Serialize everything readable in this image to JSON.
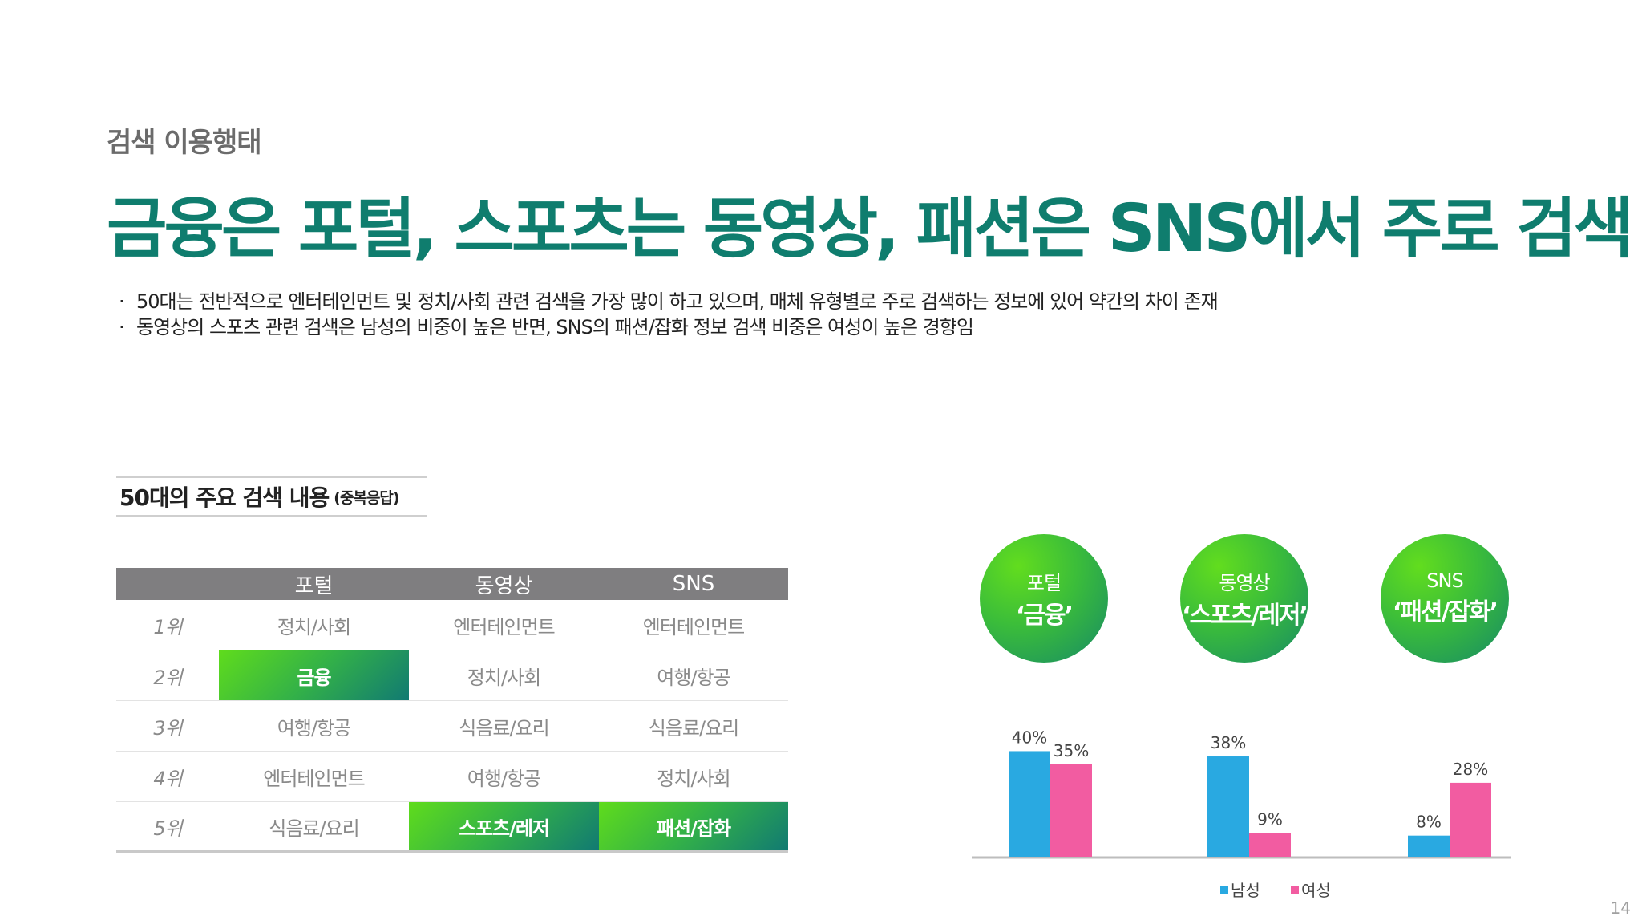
{
  "section_label": "검색 이용행태",
  "headline": "금융은 포털, 스포츠는 동영상, 패션은 SNS에서 주로 검색",
  "bullets": [
    "50대는 전반적으로 엔터테인먼트 및 정치/사회 관련 검색을 가장 많이 하고 있으며, 매체 유형별로 주로 검색하는 정보에 있어 약간의 차이 존재",
    "동영상의 스포츠 관련 검색은 남성의 비중이 높은 반면, SNS의 패션/잡화 정보 검색 비중은 여성이 높은 경향임"
  ],
  "table": {
    "title": "50대의 주요 검색 내용",
    "title_note": "(중복응답)",
    "headers": [
      "",
      "포털",
      "동영상",
      "SNS"
    ],
    "rows": [
      {
        "rank": "1위",
        "portal": "정치/사회",
        "video": "엔터테인먼트",
        "sns": "엔터테인먼트"
      },
      {
        "rank": "2위",
        "portal": "금융",
        "video": "정치/사회",
        "sns": "여행/항공"
      },
      {
        "rank": "3위",
        "portal": "여행/항공",
        "video": "식음료/요리",
        "sns": "식음료/요리"
      },
      {
        "rank": "4위",
        "portal": "엔터테인먼트",
        "video": "여행/항공",
        "sns": "정치/사회"
      },
      {
        "rank": "5위",
        "portal": "식음료/요리",
        "video": "스포츠/레저",
        "sns": "패션/잡화"
      }
    ]
  },
  "circles": [
    {
      "top": "포털",
      "main": "‘금융’"
    },
    {
      "top": "동영상",
      "main": "‘스포츠/레저’"
    },
    {
      "top": "SNS",
      "main": "‘패션/잡화’"
    }
  ],
  "chart_data": {
    "type": "bar",
    "categories": [
      "포털 ‘금융’",
      "동영상 ‘스포츠/레저’",
      "SNS ‘패션/잡화’"
    ],
    "series": [
      {
        "name": "남성",
        "values": [
          40,
          38,
          8
        ],
        "color": "#29a9e1"
      },
      {
        "name": "여성",
        "values": [
          35,
          9,
          28
        ],
        "color": "#f25ca1"
      }
    ],
    "value_labels": [
      [
        "40%",
        "38%",
        "8%"
      ],
      [
        "35%",
        "9%",
        "28%"
      ]
    ],
    "ylim": [
      0,
      45
    ],
    "legend_position": "bottom"
  },
  "page_number": "14"
}
